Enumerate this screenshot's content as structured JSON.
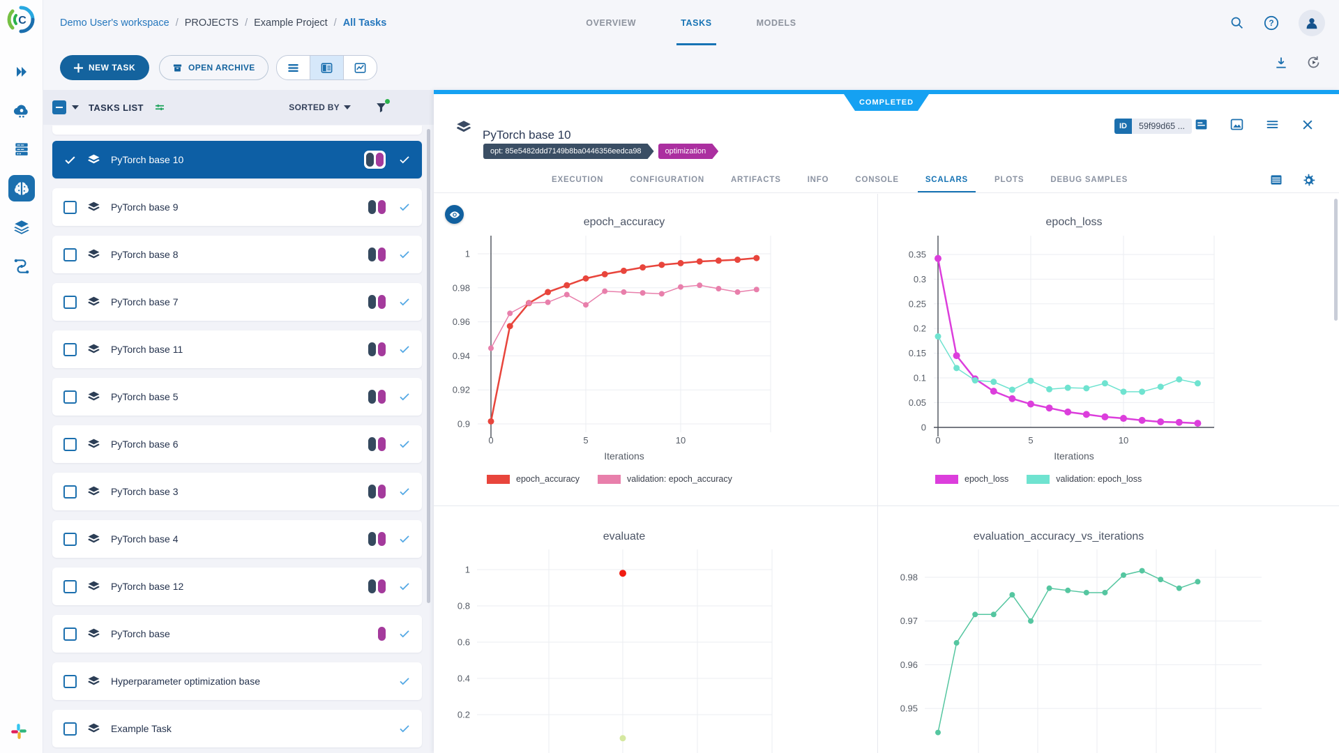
{
  "colors": {
    "accent": "#1b6fae",
    "link": "#2577bd",
    "ribbon_blue": "#15a1f2",
    "selected_row": "#0d5fa5",
    "pill_slate": "#35495e",
    "pill_magenta": "#a43a9c",
    "check_blue": "#53a8e4"
  },
  "sidebar": {
    "active_item": "projects"
  },
  "header": {
    "breadcrumb": [
      "Demo User's workspace",
      "PROJECTS",
      "Example Project",
      "All Tasks"
    ],
    "tabs": [
      {
        "label": "OVERVIEW",
        "active": false
      },
      {
        "label": "TASKS",
        "active": true
      },
      {
        "label": "MODELS",
        "active": false
      }
    ]
  },
  "toolbar": {
    "new_task_label": "NEW TASK",
    "open_archive_label": "OPEN ARCHIVE"
  },
  "task_list": {
    "title": "TASKS LIST",
    "sorted_by_label": "SORTED BY",
    "rows": [
      {
        "name": "PyTorch base 10",
        "selected": true,
        "pill_colors": [
          "#35495e",
          "#a43a9c"
        ]
      },
      {
        "name": "PyTorch base 9",
        "selected": false,
        "pill_colors": [
          "#35495e",
          "#a43a9c"
        ]
      },
      {
        "name": "PyTorch base 8",
        "selected": false,
        "pill_colors": [
          "#35495e",
          "#a43a9c"
        ]
      },
      {
        "name": "PyTorch base 7",
        "selected": false,
        "pill_colors": [
          "#35495e",
          "#a43a9c"
        ]
      },
      {
        "name": "PyTorch base 11",
        "selected": false,
        "pill_colors": [
          "#35495e",
          "#a43a9c"
        ]
      },
      {
        "name": "PyTorch base 5",
        "selected": false,
        "pill_colors": [
          "#35495e",
          "#a43a9c"
        ]
      },
      {
        "name": "PyTorch base 6",
        "selected": false,
        "pill_colors": [
          "#35495e",
          "#a43a9c"
        ]
      },
      {
        "name": "PyTorch base 3",
        "selected": false,
        "pill_colors": [
          "#35495e",
          "#a43a9c"
        ]
      },
      {
        "name": "PyTorch base 4",
        "selected": false,
        "pill_colors": [
          "#35495e",
          "#a43a9c"
        ]
      },
      {
        "name": "PyTorch base 12",
        "selected": false,
        "pill_colors": [
          "#35495e",
          "#a43a9c"
        ]
      },
      {
        "name": "PyTorch base",
        "selected": false,
        "pill_colors": [
          "#a43a9c"
        ]
      },
      {
        "name": "Hyperparameter optimization base",
        "selected": false,
        "pill_colors": []
      },
      {
        "name": "Example Task",
        "selected": false,
        "pill_colors": []
      }
    ]
  },
  "detail": {
    "status": "COMPLETED",
    "title": "PyTorch base 10",
    "id_label": "ID",
    "id_value": "59f99d65 ...",
    "tags": [
      {
        "label": "opt: 85e5482ddd7149b8ba0446356eedca98",
        "color": "#3a4e64"
      },
      {
        "label": "optimization",
        "color": "#ab2fa0"
      }
    ],
    "tabs": [
      {
        "label": "EXECUTION",
        "active": false
      },
      {
        "label": "CONFIGURATION",
        "active": false
      },
      {
        "label": "ARTIFACTS",
        "active": false
      },
      {
        "label": "INFO",
        "active": false
      },
      {
        "label": "CONSOLE",
        "active": false
      },
      {
        "label": "SCALARS",
        "active": true
      },
      {
        "label": "PLOTS",
        "active": false
      },
      {
        "label": "DEBUG SAMPLES",
        "active": false
      }
    ]
  },
  "chart_data": [
    {
      "type": "line",
      "title": "epoch_accuracy",
      "xlabel": "Iterations",
      "x": [
        0,
        1,
        2,
        3,
        4,
        5,
        6,
        7,
        8,
        9,
        10,
        11,
        12,
        13,
        14
      ],
      "series": [
        {
          "name": "epoch_accuracy",
          "color": "#e8453c",
          "values": [
            0.9015,
            0.9575,
            0.971,
            0.9775,
            0.9815,
            0.9855,
            0.988,
            0.99,
            0.992,
            0.9935,
            0.9945,
            0.9955,
            0.996,
            0.9965,
            0.9975
          ]
        },
        {
          "name": "validation: epoch_accuracy",
          "color": "#e87fab",
          "values": [
            0.9445,
            0.965,
            0.971,
            0.9715,
            0.976,
            0.97,
            0.978,
            0.9775,
            0.977,
            0.9765,
            0.9805,
            0.9815,
            0.9795,
            0.9775,
            0.979
          ]
        }
      ],
      "yticks": [
        1,
        0.98,
        0.96,
        0.94,
        0.92,
        0.9
      ],
      "xticks": [
        0,
        5,
        10
      ],
      "ylim": [
        0.895,
        1.005
      ],
      "grid": true,
      "legend": "bottom"
    },
    {
      "type": "line",
      "title": "epoch_loss",
      "xlabel": "Iterations",
      "x": [
        0,
        1,
        2,
        3,
        4,
        5,
        6,
        7,
        8,
        9,
        10,
        11,
        12,
        13,
        14
      ],
      "series": [
        {
          "name": "epoch_loss",
          "color": "#dc3edc",
          "values": [
            0.342,
            0.145,
            0.098,
            0.073,
            0.058,
            0.047,
            0.039,
            0.031,
            0.026,
            0.021,
            0.018,
            0.014,
            0.011,
            0.01,
            0.008
          ]
        },
        {
          "name": "validation: epoch_loss",
          "color": "#6fe3d0",
          "values": [
            0.184,
            0.12,
            0.095,
            0.092,
            0.076,
            0.094,
            0.077,
            0.08,
            0.079,
            0.089,
            0.072,
            0.072,
            0.082,
            0.097,
            0.089
          ]
        }
      ],
      "yticks": [
        0.35,
        0.3,
        0.25,
        0.2,
        0.15,
        0.1,
        0.05,
        0
      ],
      "xticks": [
        0,
        5,
        10
      ],
      "ylim": [
        0,
        0.36
      ],
      "grid": true,
      "legend": "bottom"
    },
    {
      "type": "scatter",
      "title": "evaluate",
      "xlabel": "",
      "points": [
        {
          "color": "#f01d12",
          "y": 0.98
        },
        {
          "color": "#d5e8a0",
          "y": 0.07
        }
      ],
      "yticks": [
        1,
        0.8,
        0.6,
        0.4,
        0.2
      ],
      "ylim": [
        0,
        1.05
      ],
      "grid": true,
      "layout_note": "bottom of plot clipped by viewport; x axis not visible"
    },
    {
      "type": "line",
      "title": "evaluation_accuracy_vs_iterations",
      "xlabel": "",
      "x": [
        0,
        1,
        2,
        3,
        4,
        5,
        6,
        7,
        8,
        9,
        10,
        11,
        12,
        13,
        14
      ],
      "series": [
        {
          "name": "evaluation_accuracy_vs_iterations",
          "color": "#55c6a0",
          "values": [
            0.9445,
            0.965,
            0.9715,
            0.9715,
            0.976,
            0.97,
            0.9775,
            0.977,
            0.9765,
            0.9765,
            0.9805,
            0.9815,
            0.9795,
            0.9775,
            0.979
          ]
        }
      ],
      "yticks": [
        0.98,
        0.97,
        0.96,
        0.95
      ],
      "ylim": [
        0.943,
        0.985
      ],
      "grid": true,
      "layout_note": "bottom of plot clipped by viewport; x axis not visible"
    }
  ]
}
